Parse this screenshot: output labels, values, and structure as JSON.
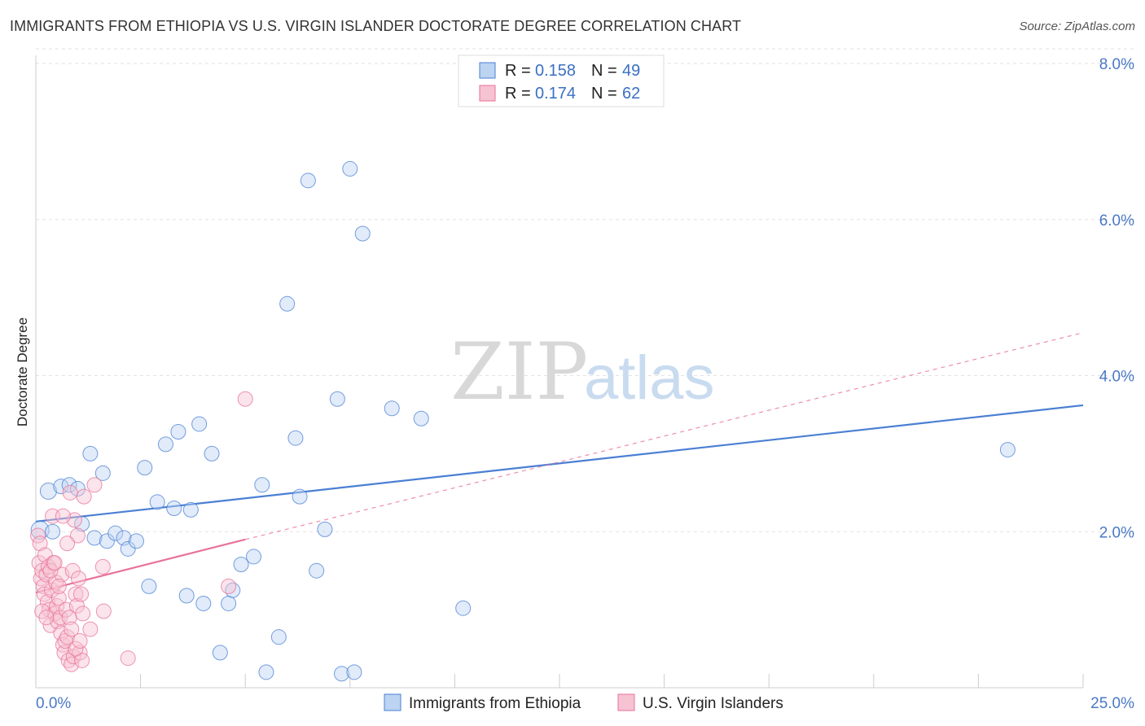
{
  "header": {
    "title": "IMMIGRANTS FROM ETHIOPIA VS U.S. VIRGIN ISLANDER DOCTORATE DEGREE CORRELATION CHART",
    "source": "Source: ZipAtlas.com"
  },
  "watermark": {
    "part1": "ZIP",
    "part2": "atlas"
  },
  "chart_data": {
    "type": "scatter",
    "ylabel": "Doctorate Degree",
    "xlim": [
      0,
      25
    ],
    "ylim": [
      0,
      8
    ],
    "x_tick_labels": [
      "0.0%",
      "25.0%"
    ],
    "y_ticks": [
      2,
      4,
      6,
      8
    ],
    "y_tick_labels": [
      "2.0%",
      "4.0%",
      "6.0%",
      "8.0%"
    ],
    "colors": {
      "series1": "#4a7fd4",
      "series2": "#e8719a",
      "fill1": "#bcd3f1",
      "fill2": "#f6c3d3"
    },
    "legend": [
      {
        "r_label": "R =",
        "r": "0.158",
        "n_label": "N =",
        "n": "49"
      },
      {
        "r_label": "R =",
        "r": "0.174",
        "n_label": "N =",
        "n": "62"
      }
    ],
    "series": [
      {
        "name": "Immigrants from Ethiopia",
        "trend": {
          "x0": 0,
          "y0": 2.13,
          "x1": 25,
          "y1": 3.62,
          "dashed_to": null
        },
        "points": [
          [
            0.1,
            2.02,
            11
          ],
          [
            0.3,
            2.52,
            10
          ],
          [
            0.4,
            2.0,
            9
          ],
          [
            0.6,
            2.58,
            9
          ],
          [
            0.8,
            2.6,
            9
          ],
          [
            1.0,
            2.55,
            9
          ],
          [
            1.1,
            2.1,
            9
          ],
          [
            1.3,
            3.0,
            9
          ],
          [
            1.4,
            1.92,
            9
          ],
          [
            1.6,
            2.75,
            9
          ],
          [
            1.7,
            1.88,
            9
          ],
          [
            1.9,
            1.98,
            9
          ],
          [
            2.1,
            1.92,
            9
          ],
          [
            2.2,
            1.78,
            9
          ],
          [
            2.4,
            1.88,
            9
          ],
          [
            2.6,
            2.82,
            9
          ],
          [
            2.7,
            1.3,
            9
          ],
          [
            2.9,
            2.38,
            9
          ],
          [
            3.1,
            3.12,
            9
          ],
          [
            3.3,
            2.3,
            9
          ],
          [
            3.4,
            3.28,
            9
          ],
          [
            3.6,
            1.18,
            9
          ],
          [
            3.7,
            2.28,
            9
          ],
          [
            3.9,
            3.38,
            9
          ],
          [
            4.0,
            1.08,
            9
          ],
          [
            4.2,
            3.0,
            9
          ],
          [
            4.4,
            0.45,
            9
          ],
          [
            4.6,
            1.08,
            9
          ],
          [
            4.7,
            1.25,
            9
          ],
          [
            4.9,
            1.58,
            9
          ],
          [
            5.2,
            1.68,
            9
          ],
          [
            5.4,
            2.6,
            9
          ],
          [
            5.5,
            0.2,
            9
          ],
          [
            5.8,
            0.65,
            9
          ],
          [
            6.0,
            4.92,
            9
          ],
          [
            6.2,
            3.2,
            9
          ],
          [
            6.3,
            2.45,
            9
          ],
          [
            6.5,
            6.5,
            9
          ],
          [
            6.7,
            1.5,
            9
          ],
          [
            6.9,
            2.03,
            9
          ],
          [
            7.2,
            3.7,
            9
          ],
          [
            7.3,
            0.18,
            9
          ],
          [
            7.5,
            6.65,
            9
          ],
          [
            7.6,
            0.2,
            9
          ],
          [
            7.8,
            5.82,
            9
          ],
          [
            8.5,
            3.58,
            9
          ],
          [
            9.2,
            3.45,
            9
          ],
          [
            10.2,
            1.02,
            9
          ],
          [
            23.2,
            3.05,
            9
          ]
        ]
      },
      {
        "name": "U.S. Virgin Islanders",
        "trend": {
          "x0": 0,
          "y0": 1.22,
          "x1": 5.0,
          "y1": 1.9,
          "dash_x1": 25,
          "dash_y1": 4.55
        },
        "points": [
          [
            0.05,
            1.95,
            9
          ],
          [
            0.08,
            1.6,
            9
          ],
          [
            0.1,
            1.85,
            9
          ],
          [
            0.12,
            1.4,
            9
          ],
          [
            0.15,
            1.5,
            9
          ],
          [
            0.18,
            1.3,
            9
          ],
          [
            0.2,
            1.2,
            9
          ],
          [
            0.22,
            1.7,
            9
          ],
          [
            0.25,
            1.45,
            9
          ],
          [
            0.28,
            1.1,
            9
          ],
          [
            0.3,
            1.55,
            9
          ],
          [
            0.32,
            1.0,
            9
          ],
          [
            0.35,
            0.8,
            9
          ],
          [
            0.38,
            1.25,
            9
          ],
          [
            0.4,
            2.2,
            9
          ],
          [
            0.42,
            1.6,
            9
          ],
          [
            0.45,
            0.95,
            9
          ],
          [
            0.48,
            1.35,
            9
          ],
          [
            0.5,
            1.05,
            9
          ],
          [
            0.52,
            0.85,
            9
          ],
          [
            0.55,
            1.15,
            9
          ],
          [
            0.58,
            0.9,
            9
          ],
          [
            0.6,
            0.7,
            9
          ],
          [
            0.62,
            1.45,
            9
          ],
          [
            0.65,
            0.55,
            9
          ],
          [
            0.68,
            0.45,
            9
          ],
          [
            0.7,
            0.6,
            9
          ],
          [
            0.72,
            1.0,
            9
          ],
          [
            0.75,
            0.65,
            9
          ],
          [
            0.78,
            0.35,
            9
          ],
          [
            0.8,
            0.9,
            9
          ],
          [
            0.82,
            2.5,
            9
          ],
          [
            0.85,
            0.3,
            9
          ],
          [
            0.88,
            1.5,
            9
          ],
          [
            0.9,
            0.4,
            9
          ],
          [
            0.92,
            2.15,
            9
          ],
          [
            0.95,
            1.2,
            9
          ],
          [
            0.98,
            1.05,
            9
          ],
          [
            1.0,
            1.95,
            9
          ],
          [
            1.02,
            1.4,
            9
          ],
          [
            1.05,
            0.45,
            9
          ],
          [
            1.08,
            1.2,
            9
          ],
          [
            1.1,
            0.35,
            9
          ],
          [
            1.12,
            0.95,
            9
          ],
          [
            1.15,
            2.45,
            9
          ],
          [
            1.3,
            0.75,
            9
          ],
          [
            1.4,
            2.6,
            9
          ],
          [
            1.6,
            1.55,
            9
          ],
          [
            1.62,
            0.98,
            9
          ],
          [
            2.2,
            0.38,
            9
          ],
          [
            4.6,
            1.3,
            9
          ],
          [
            5.0,
            3.7,
            9
          ],
          [
            0.15,
            0.98,
            9
          ],
          [
            0.25,
            0.9,
            9
          ],
          [
            0.35,
            1.5,
            9
          ],
          [
            0.45,
            1.6,
            9
          ],
          [
            0.55,
            1.3,
            9
          ],
          [
            0.65,
            2.2,
            9
          ],
          [
            0.75,
            1.85,
            9
          ],
          [
            0.85,
            0.75,
            9
          ],
          [
            0.95,
            0.5,
            9
          ],
          [
            1.05,
            0.6,
            9
          ]
        ]
      }
    ]
  }
}
